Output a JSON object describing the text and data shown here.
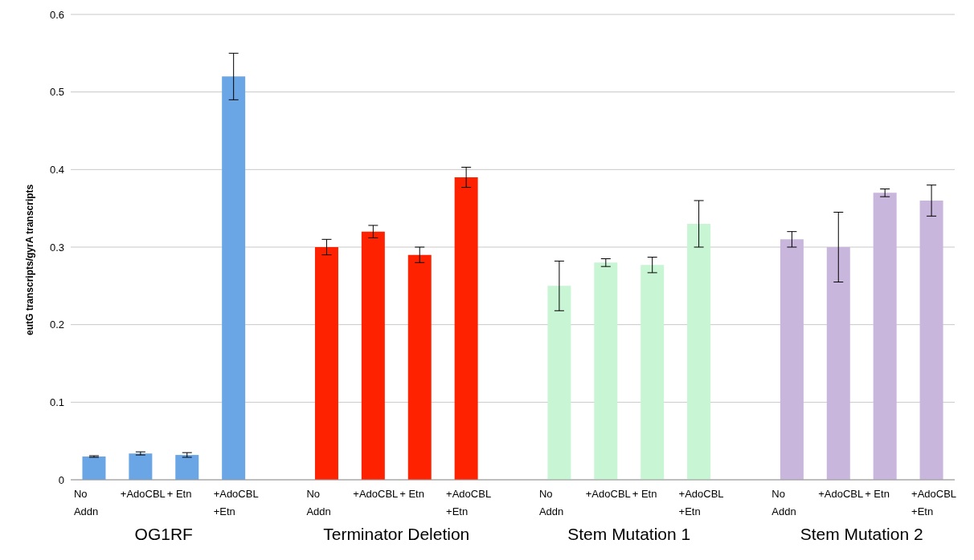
{
  "chart_data": {
    "type": "bar",
    "ylabel": "eutG transcripts/gyrA transcripts",
    "categories": [
      "No\nAddn",
      "+AdoCBL",
      "+ Etn",
      "+AdoCBL\n+Etn",
      null,
      "No\nAddn",
      "+AdoCBL",
      "+ Etn",
      "+AdoCBL\n+Etn",
      null,
      "No\nAddn",
      "+AdoCBL",
      "+ Etn",
      "+AdoCBL\n+Etn",
      null,
      "No\nAddn",
      "+AdoCBL",
      "+ Etn",
      "+AdoCBL\n+Etn"
    ],
    "values": [
      0.03,
      0.034,
      0.032,
      0.52,
      null,
      0.3,
      0.32,
      0.29,
      0.39,
      null,
      0.25,
      0.28,
      0.277,
      0.33,
      null,
      0.31,
      0.3,
      0.37,
      0.36
    ],
    "errors": [
      0.001,
      0.002,
      0.003,
      0.03,
      null,
      0.01,
      0.008,
      0.01,
      0.013,
      null,
      0.032,
      0.005,
      0.01,
      0.03,
      null,
      0.01,
      0.045,
      0.005,
      0.02
    ],
    "colors": [
      "#6aa6e6",
      "#6aa6e6",
      "#6aa6e6",
      "#6aa6e6",
      null,
      "#ff2200",
      "#ff2200",
      "#ff2200",
      "#ff2200",
      null,
      "#c8f5d4",
      "#c8f5d4",
      "#c8f5d4",
      "#c8f5d4",
      null,
      "#c9b6dc",
      "#c9b6dc",
      "#c9b6dc",
      "#c9b6dc"
    ],
    "annotations": [
      "OG1RF",
      "Terminator Deletion",
      "Stem Mutation 1",
      "Stem Mutation 2"
    ],
    "ylim": [
      0,
      0.6
    ],
    "yticks": [
      0,
      0.1,
      0.2,
      0.3,
      0.4,
      0.5,
      0.6
    ],
    "grid": "y"
  }
}
